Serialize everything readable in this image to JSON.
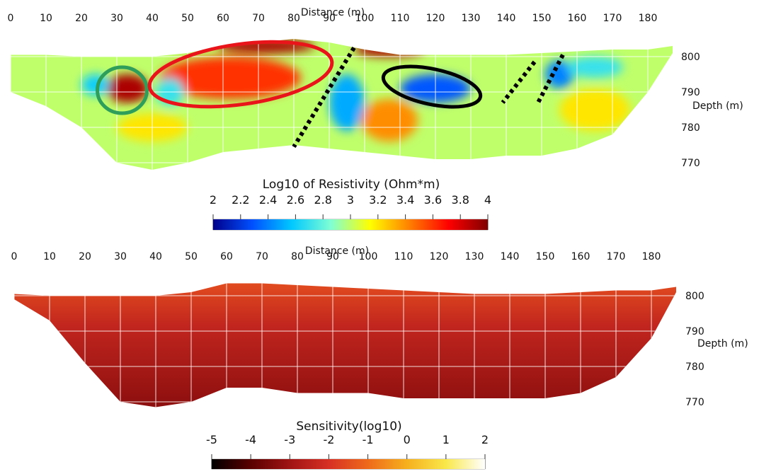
{
  "chart_data": [
    {
      "type": "heatmap",
      "title": "",
      "xlabel": "Distance (m)",
      "ylabel": "Depth (m)",
      "x_ticks": [
        0,
        10,
        20,
        30,
        40,
        50,
        60,
        70,
        80,
        90,
        100,
        110,
        120,
        130,
        140,
        150,
        160,
        170,
        180
      ],
      "y_ticks": [
        800,
        790,
        780,
        770
      ],
      "xlim": [
        0,
        188
      ],
      "ylim": [
        766,
        806
      ],
      "surface": {
        "x": [
          0,
          10,
          20,
          30,
          40,
          50,
          60,
          70,
          80,
          90,
          100,
          110,
          120,
          130,
          140,
          150,
          160,
          170,
          180,
          187
        ],
        "elevation": [
          800.5,
          800.5,
          800,
          800,
          800,
          801,
          803,
          804,
          805,
          804,
          802,
          800.5,
          800.5,
          800.5,
          800.5,
          801,
          801.5,
          802,
          802,
          803
        ]
      },
      "bottom": {
        "x": [
          0,
          10,
          20,
          30,
          40,
          50,
          60,
          70,
          80,
          90,
          100,
          110,
          120,
          130,
          140,
          150,
          160,
          170,
          180,
          187
        ],
        "elevation": [
          790,
          786,
          780,
          770,
          768,
          770,
          773,
          774,
          775,
          774,
          773,
          772,
          771,
          771,
          772,
          772,
          774,
          778,
          790,
          801
        ]
      },
      "colorbar": {
        "label": "Log10 of Resistivity (Ohm*m)",
        "ticks": [
          "2",
          "2.2",
          "2.4",
          "2.6",
          "2.8",
          "3",
          "3.2",
          "3.4",
          "3.6",
          "3.8",
          "4"
        ],
        "range": [
          2,
          4
        ],
        "colormap": "jet",
        "colors": [
          "#00008b",
          "#0050ff",
          "#00c8ff",
          "#7fffd4",
          "#ffff00",
          "#ff8000",
          "#ff0000",
          "#800000"
        ]
      },
      "background_value": 3.0,
      "anomalies": [
        {
          "x": 33,
          "depth": 791,
          "value": 3.9,
          "rx": 6,
          "ry": 4
        },
        {
          "x": 62,
          "depth": 794,
          "value": 3.6,
          "rx": 20,
          "ry": 6
        },
        {
          "x": 72,
          "depth": 803,
          "value": 3.9,
          "rx": 14,
          "ry": 2
        },
        {
          "x": 107,
          "depth": 802,
          "value": 3.9,
          "rx": 10,
          "ry": 2
        },
        {
          "x": 120,
          "depth": 791,
          "value": 2.3,
          "rx": 10,
          "ry": 4
        },
        {
          "x": 95,
          "depth": 787,
          "value": 2.5,
          "rx": 5,
          "ry": 8
        },
        {
          "x": 107,
          "depth": 782,
          "value": 3.4,
          "rx": 8,
          "ry": 6
        },
        {
          "x": 155,
          "depth": 795,
          "value": 2.4,
          "rx": 4,
          "ry": 4
        },
        {
          "x": 24,
          "depth": 792,
          "value": 2.6,
          "rx": 4,
          "ry": 3
        },
        {
          "x": 45,
          "depth": 790,
          "value": 2.7,
          "rx": 4,
          "ry": 4
        },
        {
          "x": 40,
          "depth": 780,
          "value": 3.2,
          "rx": 10,
          "ry": 4
        },
        {
          "x": 165,
          "depth": 785,
          "value": 3.2,
          "rx": 10,
          "ry": 6
        },
        {
          "x": 165,
          "depth": 797,
          "value": 2.7,
          "rx": 8,
          "ry": 3
        }
      ],
      "annotations": [
        {
          "shape": "ellipse",
          "color": "#2e9e5a",
          "cx": 31.5,
          "cy": 790.5,
          "rx": 7,
          "ry": 6.5
        },
        {
          "shape": "ellipse",
          "color": "#e8141a",
          "cx": 65,
          "cy": 795,
          "rx": 26,
          "ry": 8.5,
          "rotate": -8
        },
        {
          "shape": "ellipse",
          "color": "#000000",
          "cx": 119,
          "cy": 791.5,
          "rx": 14,
          "ry": 5,
          "rotate": 12
        },
        {
          "shape": "dotted-line",
          "color": "#000000",
          "x1": 97,
          "y1": 802.5,
          "x2": 80,
          "y2": 774.5
        },
        {
          "shape": "dotted-line",
          "color": "#000000",
          "x1": 148,
          "y1": 798.5,
          "x2": 139,
          "y2": 787
        },
        {
          "shape": "dotted-line",
          "color": "#000000",
          "x1": 156,
          "y1": 800.5,
          "x2": 149,
          "y2": 787
        }
      ]
    },
    {
      "type": "heatmap",
      "title": "",
      "xlabel": "Distance (m)",
      "ylabel": "Depth (m)",
      "x_ticks": [
        0,
        10,
        20,
        30,
        40,
        50,
        60,
        70,
        80,
        90,
        100,
        110,
        120,
        130,
        140,
        150,
        160,
        170,
        180
      ],
      "y_ticks": [
        800,
        790,
        780,
        770
      ],
      "xlim": [
        0,
        188
      ],
      "ylim": [
        766,
        806
      ],
      "surface": {
        "x": [
          0,
          10,
          20,
          30,
          40,
          50,
          60,
          70,
          80,
          90,
          100,
          110,
          120,
          130,
          140,
          150,
          160,
          170,
          180,
          187
        ],
        "elevation": [
          800.5,
          800,
          800,
          800,
          800,
          801,
          803.5,
          803.5,
          803,
          802.5,
          802,
          801.5,
          801,
          800.5,
          800.5,
          800.5,
          801,
          801.5,
          801.5,
          802.5
        ]
      },
      "bottom": {
        "x": [
          0,
          10,
          20,
          30,
          40,
          50,
          60,
          70,
          80,
          90,
          100,
          110,
          120,
          130,
          140,
          150,
          160,
          170,
          180,
          187
        ],
        "elevation": [
          799,
          793,
          781,
          770,
          768.5,
          770,
          774,
          774,
          772.5,
          772.5,
          772.5,
          771,
          771,
          771,
          771,
          771,
          772.5,
          777,
          788,
          801
        ]
      },
      "colorbar": {
        "label": "Sensitivity(log10)",
        "ticks": [
          "-5",
          "-4",
          "-3",
          "-2",
          "-1",
          "0",
          "1",
          "2"
        ],
        "range": [
          -5,
          2
        ],
        "colormap": "black-body",
        "colors": [
          "#000000",
          "#5a0000",
          "#a01414",
          "#d73024",
          "#ee6a1a",
          "#f6b01e",
          "#f9e84a",
          "#ffffff"
        ]
      },
      "near_surface_value": -1.5,
      "deep_value": -3.3
    }
  ]
}
